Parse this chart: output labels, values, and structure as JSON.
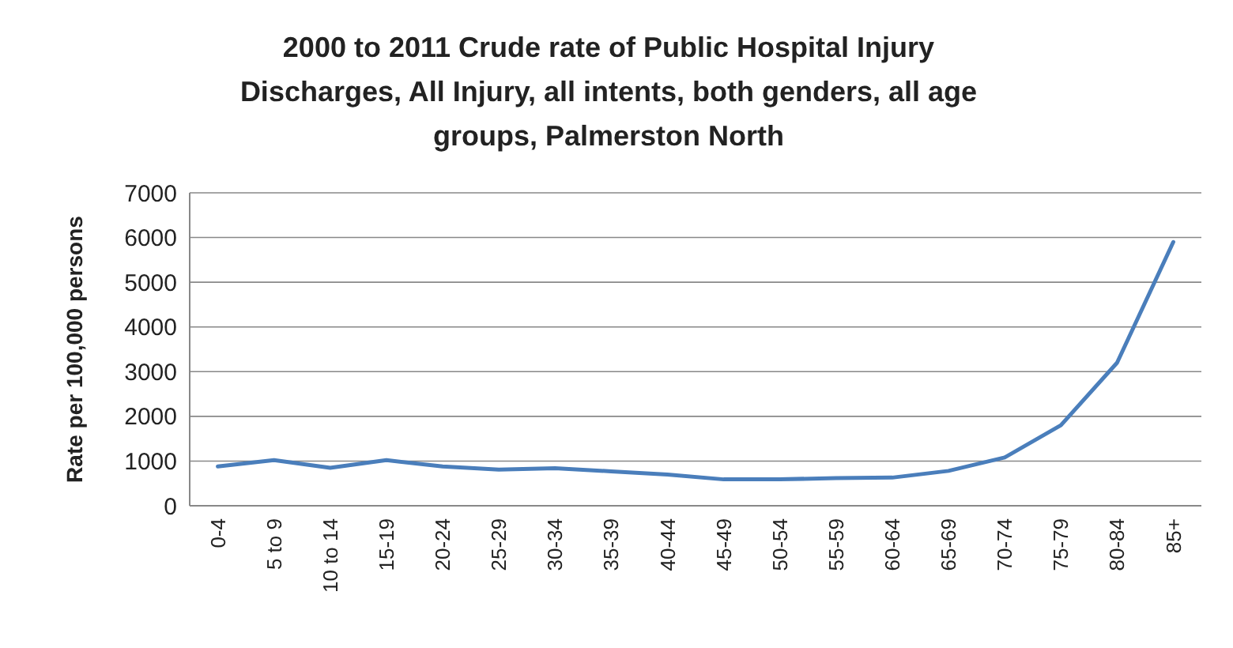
{
  "chart_data": {
    "type": "line",
    "title": "2000 to 2011 Crude rate of Public Hospital Injury Discharges, All Injury, all intents, both genders, all age groups, Palmerston North",
    "ylabel": "Rate per 100,000 persons",
    "categories": [
      "0-4",
      "5 to 9",
      "10 to 14",
      "15-19",
      "20-24",
      "25-29",
      "30-34",
      "35-39",
      "40-44",
      "45-49",
      "50-54",
      "55-59",
      "60-64",
      "65-69",
      "70-74",
      "75-79",
      "80-84",
      "85+"
    ],
    "series": [
      {
        "color": "#4a7ebb",
        "values": [
          880,
          1020,
          850,
          1020,
          880,
          810,
          840,
          770,
          700,
          590,
          590,
          620,
          630,
          780,
          1080,
          1800,
          3200,
          5900
        ]
      }
    ],
    "ylim": [
      0,
      7000
    ],
    "yticks": [
      0,
      1000,
      2000,
      3000,
      4000,
      5000,
      6000,
      7000
    ],
    "grid": "y",
    "marker": "none",
    "line_style": "solid"
  }
}
